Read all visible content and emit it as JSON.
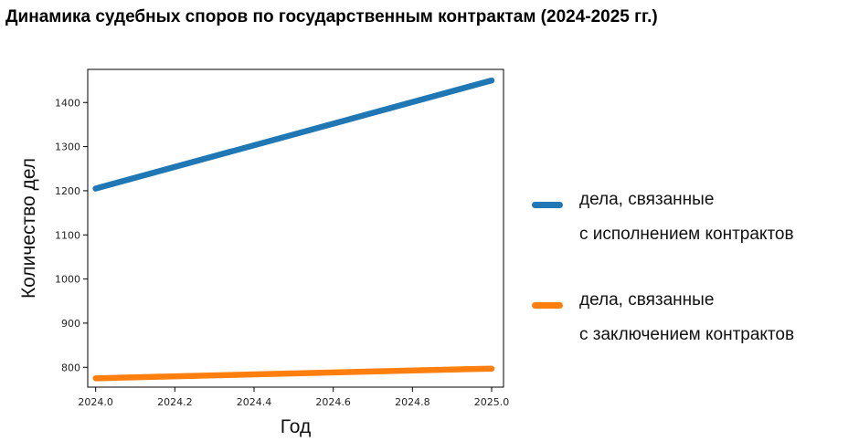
{
  "chart_data": {
    "type": "line",
    "title": "Динамика судебных споров по государственным контрактам (2024-2025 гг.)",
    "xlabel": "Год",
    "ylabel": "Количество дел",
    "xlim": [
      2023.98,
      2025.03
    ],
    "ylim": [
      755,
      1475
    ],
    "x_ticks": [
      "2024.0",
      "2024.2",
      "2024.4",
      "2024.6",
      "2024.8",
      "2025.0"
    ],
    "x_tick_values": [
      2024.0,
      2024.2,
      2024.4,
      2024.6,
      2024.8,
      2025.0
    ],
    "y_ticks": [
      "800",
      "900",
      "1000",
      "1100",
      "1200",
      "1300",
      "1400"
    ],
    "y_tick_values": [
      800,
      900,
      1000,
      1100,
      1200,
      1300,
      1400
    ],
    "grid": false,
    "legend_position": "right",
    "series": [
      {
        "name_line1": "дела, связанные",
        "name_line2": "с исполнением контрактов",
        "color": "#1f77b4",
        "x": [
          2024.0,
          2025.0
        ],
        "y": [
          1205,
          1450
        ]
      },
      {
        "name_line1": "дела, связанные",
        "name_line2": "с заключением контрактов",
        "color": "#ff7f0e",
        "x": [
          2024.0,
          2025.0
        ],
        "y": [
          775,
          797
        ]
      }
    ]
  }
}
